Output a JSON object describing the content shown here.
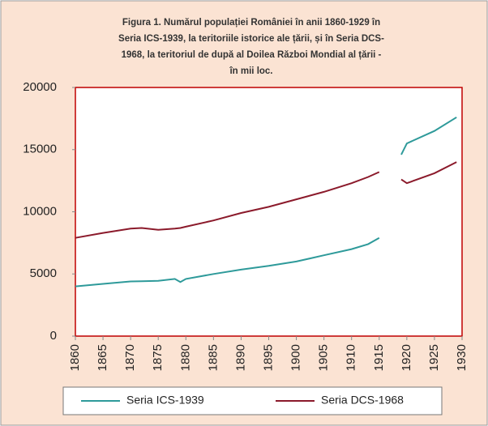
{
  "chart_data": {
    "type": "line",
    "title": [
      "Figura  1. Numărul populației României în anii 1860-1929  în",
      "Seria  ICS-1939, la teritoriile  istorice ale țării,  și în Seria  DCS-",
      "1968, la teritoriul  de după  al Doilea Război Mondial al țării  -",
      "în mii loc."
    ],
    "x": [
      1860,
      1865,
      1870,
      1872,
      1875,
      1878,
      1879,
      1880,
      1885,
      1890,
      1895,
      1900,
      1905,
      1910,
      1913,
      1915,
      1916,
      1919,
      1920,
      1925,
      1929
    ],
    "series": [
      {
        "name": "Seria ICS-1939",
        "color": "#2e9a9a",
        "values": [
          4000,
          4200,
          4400,
          4420,
          4450,
          4600,
          4350,
          4600,
          5000,
          5350,
          5650,
          6000,
          6500,
          7000,
          7400,
          7900,
          null,
          14600,
          15500,
          16500,
          17600
        ]
      },
      {
        "name": "Seria DCS-1968",
        "color": "#8b1a2b",
        "values": [
          7900,
          8300,
          8650,
          8700,
          8550,
          8650,
          8700,
          8800,
          9300,
          9900,
          10400,
          11000,
          11600,
          12300,
          12800,
          13200,
          null,
          12600,
          12300,
          13100,
          14000
        ]
      }
    ],
    "xlim": [
      1860,
      1930
    ],
    "xticks": [
      1860,
      1865,
      1870,
      1875,
      1880,
      1885,
      1890,
      1895,
      1900,
      1905,
      1910,
      1915,
      1920,
      1925,
      1930
    ],
    "ylim": [
      0,
      20000
    ],
    "yticks": [
      0,
      5000,
      10000,
      15000,
      20000
    ]
  }
}
